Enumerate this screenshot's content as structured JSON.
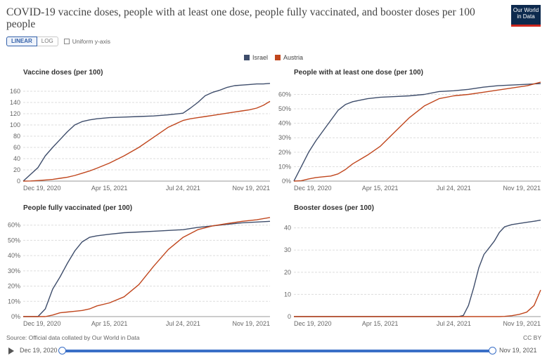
{
  "header": {
    "title": "COVID-19 vaccine doses, people with at least one dose, people fully vaccinated, and booster doses per 100 people",
    "logo_line1": "Our World",
    "logo_line2": "in Data"
  },
  "controls": {
    "linear": "LINEAR",
    "log": "LOG",
    "uniform": "Uniform y-axis"
  },
  "legend": [
    {
      "label": "Israel",
      "color": "#3e4d6b"
    },
    {
      "label": "Austria",
      "color": "#c0461d"
    }
  ],
  "footer": {
    "source": "Source: Official data collated by Our World in Data",
    "license": "CC BY"
  },
  "timeline": {
    "start": "Dec 19, 2020",
    "end": "Nov 19, 2021"
  },
  "chart_data": [
    {
      "type": "line",
      "title": "Vaccine doses (per 100)",
      "x_ticks": [
        "Dec 19, 2020",
        "Apr 15, 2021",
        "Jul 24, 2021",
        "Nov 19, 2021"
      ],
      "ylim": [
        0,
        175
      ],
      "y_ticks": [
        0,
        20,
        40,
        60,
        80,
        100,
        120,
        140,
        160
      ],
      "y_labels": [
        "0",
        "20",
        "40",
        "60",
        "80",
        "100",
        "120",
        "140",
        "160"
      ],
      "x": [
        "2020-12-19",
        "2020-12-29",
        "2021-01-08",
        "2021-01-18",
        "2021-01-28",
        "2021-02-07",
        "2021-02-17",
        "2021-02-27",
        "2021-03-09",
        "2021-03-19",
        "2021-03-29",
        "2021-04-15",
        "2021-05-05",
        "2021-05-25",
        "2021-06-14",
        "2021-07-04",
        "2021-07-24",
        "2021-08-03",
        "2021-08-13",
        "2021-08-23",
        "2021-09-02",
        "2021-09-12",
        "2021-09-22",
        "2021-10-02",
        "2021-10-12",
        "2021-10-22",
        "2021-11-01",
        "2021-11-10",
        "2021-11-19"
      ],
      "series": [
        {
          "name": "Israel",
          "values": [
            0,
            12,
            24,
            45,
            60,
            74,
            88,
            100,
            106,
            109,
            111,
            113,
            114,
            115,
            116,
            118,
            121,
            130,
            140,
            152,
            158,
            162,
            167,
            170,
            171,
            172,
            173,
            173,
            174
          ]
        },
        {
          "name": "Austria",
          "values": [
            0,
            0.2,
            1,
            2,
            3,
            5,
            7,
            10,
            14,
            18,
            23,
            32,
            45,
            60,
            78,
            96,
            108,
            111,
            113,
            115,
            117,
            119,
            121,
            123,
            125,
            127,
            130,
            135,
            142
          ]
        }
      ]
    },
    {
      "type": "line",
      "title": "People with at least one dose (per 100)",
      "x_ticks": [
        "Dec 19, 2020",
        "Apr 15, 2021",
        "Jul 24, 2021",
        "Nov 19, 2021"
      ],
      "ylim": [
        0,
        68
      ],
      "y_ticks": [
        0,
        10,
        20,
        30,
        40,
        50,
        60
      ],
      "y_labels": [
        "0%",
        "10%",
        "20%",
        "30%",
        "40%",
        "50%",
        "60%"
      ],
      "x": [
        "2020-12-19",
        "2020-12-29",
        "2021-01-08",
        "2021-01-18",
        "2021-01-28",
        "2021-02-07",
        "2021-02-17",
        "2021-02-27",
        "2021-03-09",
        "2021-03-19",
        "2021-03-29",
        "2021-04-15",
        "2021-05-05",
        "2021-05-25",
        "2021-06-14",
        "2021-07-04",
        "2021-07-24",
        "2021-08-13",
        "2021-09-02",
        "2021-09-22",
        "2021-10-12",
        "2021-11-01",
        "2021-11-19"
      ],
      "series": [
        {
          "name": "Israel",
          "values": [
            0,
            10,
            20,
            28,
            35,
            42,
            49,
            53,
            55,
            56,
            57,
            58,
            58.5,
            59,
            60,
            62,
            62.5,
            63.5,
            65,
            66,
            66.5,
            67,
            67.5
          ]
        },
        {
          "name": "Austria",
          "values": [
            0,
            0.3,
            1.5,
            2.5,
            3,
            3.5,
            5,
            8,
            12,
            15,
            18,
            24,
            34,
            44,
            52,
            57,
            59,
            60,
            61.5,
            63,
            64.5,
            66,
            68.5
          ]
        }
      ]
    },
    {
      "type": "line",
      "title": "People fully vaccinated (per 100)",
      "x_ticks": [
        "Dec 19, 2020",
        "Apr 15, 2021",
        "Jul 24, 2021",
        "Nov 19, 2021"
      ],
      "ylim": [
        0,
        64
      ],
      "y_ticks": [
        0,
        10,
        20,
        30,
        40,
        50,
        60
      ],
      "y_labels": [
        "0%",
        "10%",
        "20%",
        "30%",
        "40%",
        "50%",
        "60%"
      ],
      "x": [
        "2020-12-19",
        "2020-12-29",
        "2021-01-08",
        "2021-01-18",
        "2021-01-28",
        "2021-02-07",
        "2021-02-17",
        "2021-02-27",
        "2021-03-09",
        "2021-03-19",
        "2021-03-29",
        "2021-04-15",
        "2021-05-05",
        "2021-05-25",
        "2021-06-14",
        "2021-07-04",
        "2021-07-24",
        "2021-08-13",
        "2021-09-02",
        "2021-09-22",
        "2021-10-12",
        "2021-11-01",
        "2021-11-19"
      ],
      "series": [
        {
          "name": "Israel",
          "values": [
            0,
            0,
            0,
            5,
            18,
            26,
            35,
            43,
            49,
            52,
            53,
            54,
            55,
            55.5,
            56,
            56.5,
            57,
            58.5,
            59.5,
            60.5,
            61.5,
            62,
            62.5
          ]
        },
        {
          "name": "Austria",
          "values": [
            0,
            0,
            0,
            0,
            1,
            2.5,
            3,
            3.5,
            4,
            5,
            7,
            9,
            13,
            21,
            33,
            44,
            52,
            57,
            59.5,
            61,
            62.5,
            63.5,
            65
          ]
        }
      ]
    },
    {
      "type": "line",
      "title": "Booster doses (per 100)",
      "x_ticks": [
        "Dec 19, 2020",
        "Apr 15, 2021",
        "Jul 24, 2021",
        "Nov 19, 2021"
      ],
      "ylim": [
        0,
        44
      ],
      "y_ticks": [
        0,
        10,
        20,
        30,
        40
      ],
      "y_labels": [
        "0",
        "10",
        "20",
        "30",
        "40"
      ],
      "x": [
        "2020-12-19",
        "2021-02-07",
        "2021-03-29",
        "2021-05-18",
        "2021-07-07",
        "2021-07-30",
        "2021-08-06",
        "2021-08-13",
        "2021-08-20",
        "2021-08-27",
        "2021-09-03",
        "2021-09-10",
        "2021-09-17",
        "2021-09-24",
        "2021-10-01",
        "2021-10-11",
        "2021-10-21",
        "2021-10-31",
        "2021-11-10",
        "2021-11-19"
      ],
      "series": [
        {
          "name": "Israel",
          "values": [
            0,
            0,
            0,
            0,
            0,
            0,
            0.5,
            5,
            13,
            22,
            28,
            31,
            34,
            38,
            40.5,
            41.5,
            42,
            42.5,
            43,
            43.5
          ]
        },
        {
          "name": "Austria",
          "values": [
            0,
            0,
            0,
            0,
            0,
            0,
            0,
            0,
            0,
            0,
            0,
            0,
            0,
            0,
            0.1,
            0.4,
            1,
            2,
            5,
            12
          ]
        }
      ]
    }
  ]
}
